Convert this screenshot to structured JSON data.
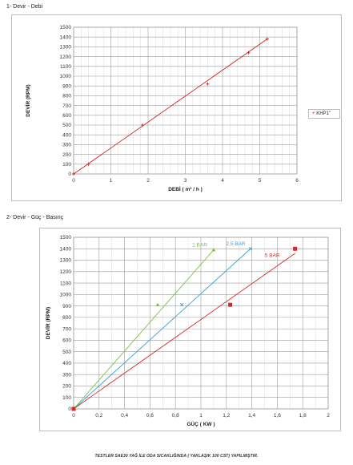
{
  "section1": {
    "title": "1- Devir - Debi"
  },
  "section2": {
    "title": "2- Devir - Güç - Basınç"
  },
  "footer": {
    "note": "TESTLER SAE30 YAĞ İLE ODA SICAKLIĞINDA ( YAKLAŞIK 100 CST) YAPILMIŞTIR."
  },
  "chart_data": [
    {
      "type": "scatter",
      "title": "",
      "xlabel": "DEBİ ( m³ / h )",
      "ylabel": "DEVİR (RPM)",
      "xlim": [
        0,
        6
      ],
      "ylim": [
        0,
        1500
      ],
      "xticks": [
        "0",
        "1",
        "2",
        "3",
        "4",
        "5",
        "6"
      ],
      "yticks": [
        "0",
        "100",
        "200",
        "300",
        "400",
        "500",
        "600",
        "700",
        "800",
        "900",
        "1000",
        "1100",
        "1200",
        "1300",
        "1400",
        "1500"
      ],
      "grid": true,
      "legend_position": "right",
      "legend": [
        "KHP1\""
      ],
      "series": [
        {
          "name": "KHP1\"",
          "color": "#cc2222",
          "marker": "plus",
          "points": [
            [
              0,
              0
            ],
            [
              0.4,
              100
            ],
            [
              1.85,
              500
            ],
            [
              3.6,
              920
            ],
            [
              4.7,
              1240
            ],
            [
              5.2,
              1380
            ]
          ],
          "trendline": [
            [
              0,
              0
            ],
            [
              5.2,
              1380
            ]
          ]
        }
      ]
    },
    {
      "type": "scatter",
      "title": "",
      "xlabel": "GÜÇ ( KW )",
      "ylabel": "DEVİR (RPM)",
      "xlim": [
        0,
        2
      ],
      "ylim": [
        0,
        1500
      ],
      "xticks": [
        "0",
        "0,2",
        "0,4",
        "0,6",
        "0,8",
        "1",
        "1,2",
        "1,4",
        "1,6",
        "1,8",
        "2"
      ],
      "yticks": [
        "0",
        "100",
        "200",
        "300",
        "400",
        "500",
        "600",
        "700",
        "800",
        "900",
        "1000",
        "1100",
        "1200",
        "1300",
        "1400",
        "1500"
      ],
      "grid": true,
      "series": [
        {
          "name": "1 BAR",
          "color": "#7cc04a",
          "marker": "triangle",
          "points": [
            [
              0,
              0
            ],
            [
              0.66,
              910
            ],
            [
              1.1,
              1390
            ]
          ],
          "trendline": [
            [
              0,
              0
            ],
            [
              1.1,
              1390
            ]
          ]
        },
        {
          "name": "2,5 BAR",
          "color": "#3a9fd8",
          "marker": "cross",
          "points": [
            [
              0,
              0
            ],
            [
              0.85,
              910
            ],
            [
              1.39,
              1400
            ]
          ],
          "trendline": [
            [
              0,
              0
            ],
            [
              1.39,
              1400
            ]
          ]
        },
        {
          "name": "5 BAR",
          "color": "#d42a2a",
          "marker": "square",
          "points": [
            [
              0,
              0
            ],
            [
              1.23,
              910
            ],
            [
              1.74,
              1400
            ]
          ],
          "trendline": [
            [
              0,
              0
            ],
            [
              1.74,
              1360
            ]
          ]
        }
      ],
      "series_labels": [
        "1 BAR",
        "2,5 BAR",
        "5 BAR"
      ]
    }
  ]
}
